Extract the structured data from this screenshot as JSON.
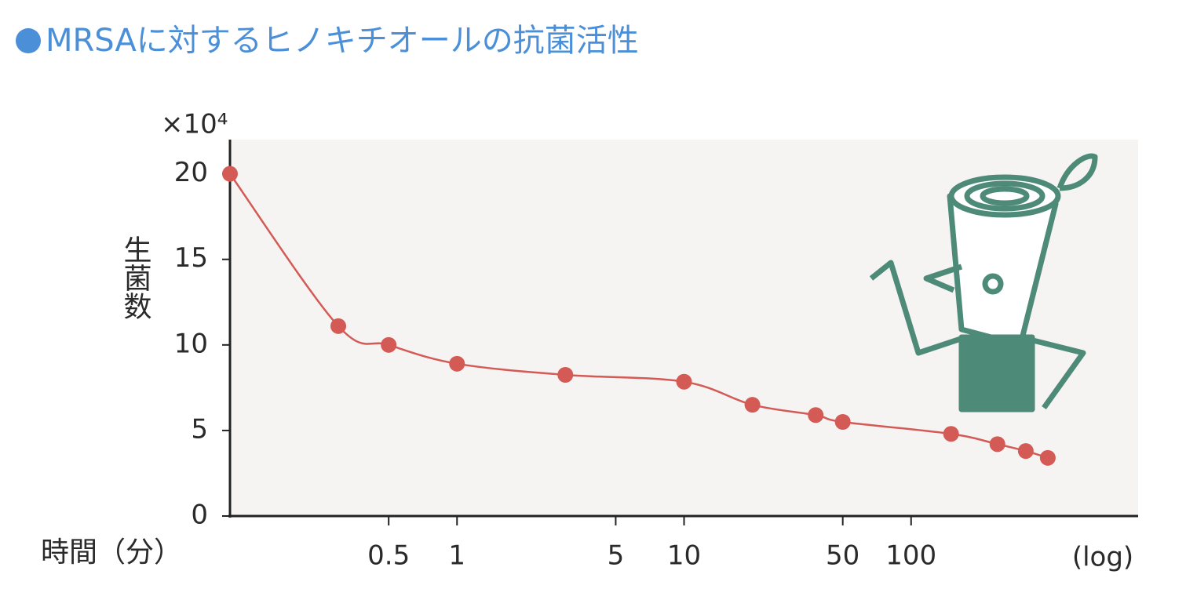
{
  "chart_data": {
    "type": "line",
    "title": "MRSAに対するヒノキチオールの抗菌活性",
    "y_unit": "×10⁴",
    "y_label": "生菌数",
    "x_label": "時間（分）",
    "x_scale_label": "(log)",
    "x": [
      0.1,
      0.3,
      0.5,
      1,
      3,
      10,
      20,
      38,
      50,
      150,
      240,
      320,
      400
    ],
    "series": [
      {
        "color": "#d35a55",
        "values": [
          20.0,
          11.1,
          10.0,
          8.9,
          8.25,
          7.85,
          6.5,
          5.9,
          5.5,
          4.8,
          4.2,
          3.8,
          3.4
        ]
      }
    ],
    "xscale": "log",
    "xlim": [
      0.1,
      1000
    ],
    "xticks": [
      0.5,
      1,
      5,
      10,
      50,
      100
    ],
    "ylim": [
      0,
      22
    ],
    "yticks": [
      0,
      5,
      10,
      15,
      20
    ],
    "grid": false
  }
}
